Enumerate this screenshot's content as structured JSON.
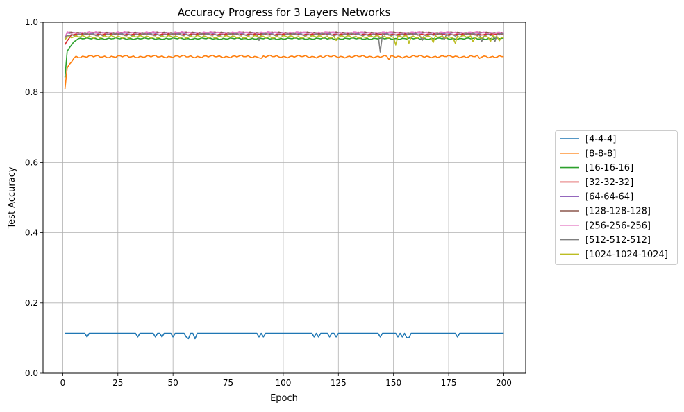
{
  "chart_data": {
    "type": "line",
    "title": "Accuracy Progress for 3 Layers Networks",
    "xlabel": "Epoch",
    "ylabel": "Test Accuracy",
    "xlim": [
      -8.95,
      209.95
    ],
    "ylim": [
      0.0,
      1.0
    ],
    "xticks": [
      0,
      25,
      50,
      75,
      100,
      125,
      150,
      175,
      200
    ],
    "yticks": [
      0.0,
      0.2,
      0.4,
      0.6,
      0.8,
      1.0
    ],
    "grid": true,
    "legend_position": "outside-right",
    "epochs": {
      "start": 1,
      "end": 200
    },
    "series": [
      {
        "name": "[4-4-4]",
        "color": "#1f77b4",
        "start": 0.1135,
        "plateau": 0.1135,
        "noise": 0.0,
        "dips": [
          [
            11,
            0.1032
          ],
          [
            34,
            0.1032
          ],
          [
            42,
            0.1032
          ],
          [
            45,
            0.1032
          ],
          [
            50,
            0.1032
          ],
          [
            53,
            0.1135
          ],
          [
            56,
            0.1032
          ],
          [
            57,
            0.098
          ],
          [
            59,
            0.1135
          ],
          [
            60,
            0.098
          ],
          [
            89,
            0.1032
          ],
          [
            91,
            0.1032
          ],
          [
            114,
            0.1032
          ],
          [
            116,
            0.1032
          ],
          [
            121,
            0.1032
          ],
          [
            124,
            0.1032
          ],
          [
            144,
            0.1032
          ],
          [
            152,
            0.1032
          ],
          [
            154,
            0.1032
          ],
          [
            156,
            0.1009
          ],
          [
            157,
            0.1009
          ],
          [
            179,
            0.1032
          ]
        ]
      },
      {
        "name": "[8-8-8]",
        "color": "#ff7f0e",
        "start": 0.81,
        "plateau": 0.902,
        "noise": 0.004,
        "dips": [
          [
            2,
            0.87
          ],
          [
            3,
            0.88
          ],
          [
            4,
            0.887
          ],
          [
            5,
            0.897
          ],
          [
            90,
            0.897
          ],
          [
            118,
            0.899
          ],
          [
            148,
            0.893
          ],
          [
            189,
            0.897
          ]
        ]
      },
      {
        "name": "[16-16-16]",
        "color": "#2ca02c",
        "start": 0.843,
        "plateau": 0.953,
        "noise": 0.0025,
        "dips": [
          [
            2,
            0.917
          ],
          [
            3,
            0.927
          ],
          [
            4,
            0.935
          ],
          [
            5,
            0.944
          ],
          [
            6,
            0.948
          ]
        ]
      },
      {
        "name": "[32-32-32]",
        "color": "#d62728",
        "start": 0.936,
        "plateau": 0.965,
        "noise": 0.002,
        "dips": [
          [
            2,
            0.947
          ],
          [
            3,
            0.955
          ]
        ]
      },
      {
        "name": "[64-64-64]",
        "color": "#9467bd",
        "start": 0.953,
        "plateau": 0.969,
        "noise": 0.002,
        "dips": []
      },
      {
        "name": "[128-128-128]",
        "color": "#8c564b",
        "start": 0.955,
        "plateau": 0.97,
        "noise": 0.002,
        "dips": []
      },
      {
        "name": "[256-256-256]",
        "color": "#e377c2",
        "start": 0.955,
        "plateau": 0.97,
        "noise": 0.003,
        "dips": []
      },
      {
        "name": "[512-512-512]",
        "color": "#7f7f7f",
        "start": 0.957,
        "plateau": 0.964,
        "noise": 0.004,
        "dips": [
          [
            89,
            0.948
          ],
          [
            144,
            0.915
          ],
          [
            163,
            0.948
          ],
          [
            173,
            0.95
          ],
          [
            190,
            0.945
          ],
          [
            196,
            0.945
          ]
        ]
      },
      {
        "name": "[1024-1024-1024]",
        "color": "#bcbd22",
        "start": 0.95,
        "plateau": 0.958,
        "noise": 0.004,
        "dips": [
          [
            124,
            0.948
          ],
          [
            151,
            0.935
          ],
          [
            157,
            0.94
          ],
          [
            168,
            0.942
          ],
          [
            178,
            0.94
          ],
          [
            186,
            0.945
          ],
          [
            194,
            0.945
          ],
          [
            198,
            0.947
          ]
        ]
      }
    ]
  }
}
